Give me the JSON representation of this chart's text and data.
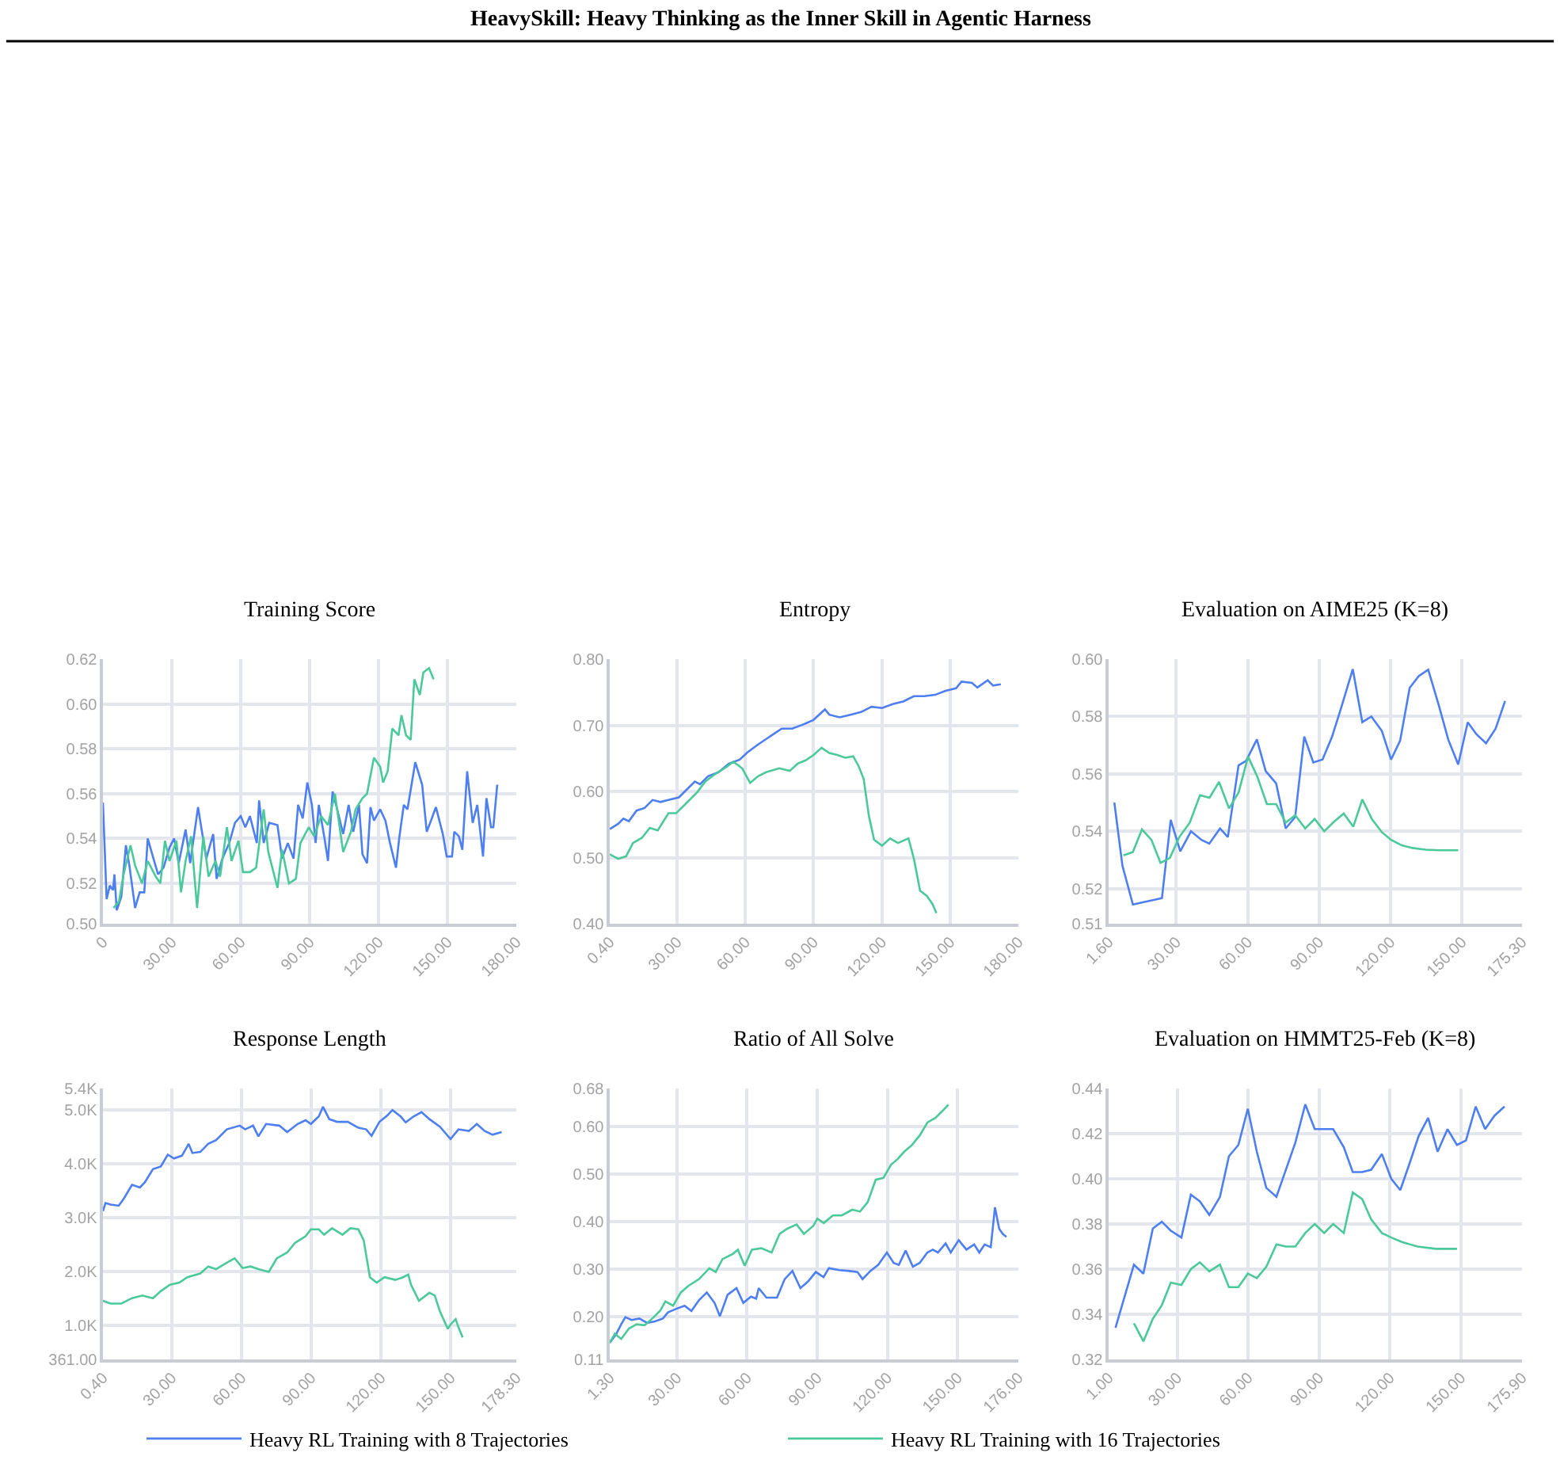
{
  "chart_data": [
    {
      "type": "line",
      "title": "Training Score",
      "annotations": [
        "HeavySkill: Heavy Thinking as the Inner Skill in Agentic Harness"
      ],
      "legend": "bottom",
      "grid": true,
      "line_style": "solid",
      "xlim": [
        0,
        180
      ],
      "xticks": [
        0,
        {
          "value": 30,
          "label": "30.00"
        },
        {
          "value": 60,
          "label": "60.00"
        },
        {
          "value": 90,
          "label": "90.00"
        },
        {
          "value": 120,
          "label": "120.00"
        },
        {
          "value": 150,
          "label": "150.00"
        },
        {
          "value": 180,
          "label": "180.00"
        }
      ],
      "ylim": [
        0.502,
        0.62
      ],
      "yticks": [
        {
          "value": 0.502,
          "label": "0.50"
        },
        0.52,
        0.54,
        0.56,
        0.58,
        {
          "value": 0.6,
          "label": "0.60"
        },
        0.62
      ],
      "series": [
        {
          "name": "Heavy RL Training with 8 Trajectories",
          "color": "#4d7ff0",
          "x": [
            0,
            1.6,
            3,
            4.4,
            5,
            6,
            8,
            10,
            11.5,
            14,
            16,
            18,
            19.5,
            22,
            24,
            26.4,
            29,
            31,
            33,
            36,
            38,
            41.4,
            45,
            48,
            49.5,
            52,
            55,
            57.5,
            60,
            62,
            64,
            67,
            68,
            70,
            72.4,
            76,
            78,
            80.5,
            83,
            85,
            87,
            89,
            91,
            92.6,
            94,
            96.5,
            98,
            100,
            102,
            104.6,
            107,
            109,
            111.5,
            113,
            115,
            116.5,
            118,
            120.7,
            123,
            125,
            127.6,
            129,
            131,
            132.6,
            136,
            139,
            141,
            142.5,
            145,
            148,
            149.7,
            152,
            153,
            155,
            156.5,
            158.6,
            161,
            163,
            165.5,
            167,
            169,
            170,
            171.7
          ],
          "values": [
            0.556,
            0.513,
            0.519,
            0.517,
            0.524,
            0.508,
            0.514,
            0.537,
            0.528,
            0.509,
            0.516,
            0.516,
            0.54,
            0.531,
            0.524,
            0.527,
            0.536,
            0.54,
            0.529,
            0.544,
            0.529,
            0.554,
            0.531,
            0.542,
            0.522,
            0.531,
            0.538,
            0.547,
            0.55,
            0.545,
            0.55,
            0.538,
            0.557,
            0.538,
            0.547,
            0.546,
            0.531,
            0.538,
            0.531,
            0.555,
            0.549,
            0.565,
            0.555,
            0.538,
            0.555,
            0.54,
            0.53,
            0.561,
            0.553,
            0.542,
            0.555,
            0.543,
            0.555,
            0.533,
            0.529,
            0.554,
            0.548,
            0.553,
            0.548,
            0.538,
            0.527,
            0.54,
            0.555,
            0.553,
            0.574,
            0.564,
            0.543,
            0.547,
            0.554,
            0.542,
            0.532,
            0.532,
            0.543,
            0.541,
            0.535,
            0.57,
            0.547,
            0.555,
            0.532,
            0.558,
            0.545,
            0.545,
            0.564
          ]
        },
        {
          "name": "Heavy RL Training with 16 Trajectories",
          "color": "#4cc99a",
          "x": [
            4.6,
            7,
            9,
            12,
            14,
            17,
            19.5,
            23,
            25,
            27,
            29,
            32,
            34,
            36,
            38.4,
            41,
            43.7,
            46,
            49,
            51,
            54,
            56,
            59,
            61,
            64,
            66.7,
            70,
            72,
            76,
            78,
            81,
            84,
            86,
            89.6,
            92,
            95,
            98,
            101,
            104.6,
            108,
            110,
            113,
            115,
            118,
            120.7,
            122,
            124,
            126,
            128.7,
            130,
            132,
            134,
            135.6,
            138,
            139.5,
            142,
            144
          ],
          "values": [
            0.509,
            0.512,
            0.524,
            0.537,
            0.528,
            0.52,
            0.53,
            0.523,
            0.52,
            0.539,
            0.53,
            0.539,
            0.516,
            0.53,
            0.541,
            0.509,
            0.541,
            0.523,
            0.53,
            0.523,
            0.545,
            0.53,
            0.539,
            0.525,
            0.525,
            0.527,
            0.553,
            0.534,
            0.518,
            0.535,
            0.52,
            0.522,
            0.538,
            0.545,
            0.541,
            0.55,
            0.546,
            0.56,
            0.534,
            0.543,
            0.553,
            0.558,
            0.56,
            0.576,
            0.572,
            0.565,
            0.57,
            0.589,
            0.586,
            0.595,
            0.586,
            0.584,
            0.611,
            0.604,
            0.614,
            0.616,
            0.611
          ]
        }
      ]
    },
    {
      "type": "line",
      "title": "Entropy",
      "grid": true,
      "line_style": "solid",
      "xlim": [
        0.4,
        180
      ],
      "xticks": [
        {
          "value": 0.4,
          "label": "0.40"
        },
        {
          "value": 30,
          "label": "30.00"
        },
        {
          "value": 60,
          "label": "60.00"
        },
        {
          "value": 90,
          "label": "90.00"
        },
        {
          "value": 120,
          "label": "120.00"
        },
        {
          "value": 150,
          "label": "150.00"
        },
        {
          "value": 180,
          "label": "180.00"
        }
      ],
      "ylim": [
        0.4,
        0.8
      ],
      "yticks": [
        {
          "value": 0.4,
          "label": "0.40"
        },
        {
          "value": 0.5,
          "label": "0.50"
        },
        {
          "value": 0.6,
          "label": "0.60"
        },
        {
          "value": 0.7,
          "label": "0.70"
        },
        {
          "value": 0.8,
          "label": "0.80"
        }
      ],
      "series": [
        {
          "color": "#4d7ff0",
          "x": [
            0.4,
            4.1,
            6.4,
            8.8,
            12.2,
            15.7,
            19.2,
            22.7,
            26.2,
            30.8,
            34.3,
            37.8,
            40.1,
            43.6,
            48.2,
            52.8,
            57.5,
            60.9,
            65.6,
            69.1,
            72.5,
            76,
            80.6,
            85.3,
            89.9,
            95,
            96.9,
            101.5,
            106.2,
            110.8,
            115.5,
            120.1,
            124.8,
            129.4,
            134.1,
            138.7,
            143.4,
            148,
            152.6,
            155,
            159.6,
            162,
            166.5,
            168.9,
            172.3
          ],
          "values": [
            0.543,
            0.551,
            0.559,
            0.555,
            0.571,
            0.575,
            0.587,
            0.584,
            0.587,
            0.591,
            0.603,
            0.615,
            0.611,
            0.623,
            0.629,
            0.642,
            0.648,
            0.659,
            0.671,
            0.679,
            0.687,
            0.695,
            0.695,
            0.701,
            0.708,
            0.724,
            0.716,
            0.712,
            0.716,
            0.72,
            0.728,
            0.726,
            0.732,
            0.736,
            0.744,
            0.744,
            0.746,
            0.752,
            0.756,
            0.766,
            0.764,
            0.757,
            0.768,
            0.76,
            0.762
          ]
        },
        {
          "color": "#4cc99a",
          "x": [
            0.4,
            4.1,
            7.6,
            10.6,
            14.6,
            18,
            21.5,
            26.2,
            29.6,
            34.3,
            38.9,
            42.4,
            47,
            51.7,
            54.7,
            58.6,
            62.1,
            65.6,
            69.1,
            74.9,
            79.5,
            83,
            86.5,
            90,
            93.5,
            96.9,
            100.4,
            103.9,
            107.4,
            109.7,
            112,
            114.3,
            116.6,
            120.1,
            123.6,
            127.1,
            131.7,
            134.1,
            136.8,
            139.8,
            142.2,
            144
          ],
          "values": [
            0.505,
            0.498,
            0.502,
            0.522,
            0.53,
            0.545,
            0.541,
            0.567,
            0.567,
            0.583,
            0.599,
            0.615,
            0.627,
            0.637,
            0.645,
            0.635,
            0.613,
            0.623,
            0.629,
            0.635,
            0.631,
            0.642,
            0.647,
            0.655,
            0.666,
            0.658,
            0.655,
            0.651,
            0.653,
            0.639,
            0.619,
            0.563,
            0.527,
            0.518,
            0.529,
            0.522,
            0.529,
            0.498,
            0.45,
            0.442,
            0.43,
            0.416
          ]
        }
      ]
    },
    {
      "type": "line",
      "title": "Evaluation on AIME25 (K=8)",
      "grid": true,
      "line_style": "solid",
      "xlim": [
        1.6,
        175.3
      ],
      "xticks": [
        {
          "value": 1.6,
          "label": "1.60"
        },
        {
          "value": 30,
          "label": "30.00"
        },
        {
          "value": 60,
          "label": "60.00"
        },
        {
          "value": 90,
          "label": "90.00"
        },
        {
          "value": 120,
          "label": "120.00"
        },
        {
          "value": 150,
          "label": "150.00"
        },
        {
          "value": 175.3,
          "label": "175.30"
        }
      ],
      "ylim": [
        0.5078,
        0.6
      ],
      "yticks": [
        {
          "value": 0.5078,
          "label": "0.51"
        },
        0.52,
        0.54,
        0.56,
        0.58,
        {
          "value": 0.6,
          "label": "0.60"
        }
      ],
      "series": [
        {
          "color": "#4d7ff0",
          "x": [
            4,
            7.4,
            11.8,
            24,
            27.7,
            31.7,
            36.2,
            40.6,
            43.9,
            48.4,
            51.7,
            56.2,
            59.4,
            63.9,
            67.6,
            72,
            76,
            80,
            83.8,
            87.6,
            91.5,
            95.5,
            99.3,
            104.2,
            108.2,
            112,
            116.4,
            120.3,
            124.1,
            128.1,
            131.9,
            135.9,
            140.3,
            144.3,
            148.5,
            152.5,
            156.2,
            160.2,
            164.2,
            168.2
          ],
          "values": [
            0.55,
            0.528,
            0.5145,
            0.5167,
            0.544,
            0.533,
            0.54,
            0.537,
            0.5357,
            0.541,
            0.538,
            0.563,
            0.5646,
            0.572,
            0.561,
            0.5567,
            0.541,
            0.545,
            0.573,
            0.564,
            0.565,
            0.573,
            0.583,
            0.5965,
            0.578,
            0.58,
            0.575,
            0.565,
            0.5716,
            0.59,
            0.5941,
            0.5963,
            0.584,
            0.572,
            0.5633,
            0.578,
            0.5738,
            0.5707,
            0.5757,
            0.5854
          ]
        },
        {
          "color": "#4cc99a",
          "x": [
            7.8,
            11.8,
            15.6,
            19.6,
            23.4,
            27.3,
            31.3,
            35.7,
            40,
            44,
            48,
            52.2,
            56.2,
            60.2,
            64.1,
            68.1,
            72,
            76,
            80,
            84.2,
            88.2,
            92.2,
            96.4,
            100.4,
            104.4,
            108.2,
            112.2,
            116.4,
            120.3,
            124.8,
            129.2,
            134.7,
            140.3,
            148.5
          ],
          "values": [
            0.5316,
            0.5328,
            0.5407,
            0.537,
            0.529,
            0.5307,
            0.538,
            0.543,
            0.5526,
            0.5517,
            0.5572,
            0.548,
            0.5535,
            0.566,
            0.559,
            0.5495,
            0.5495,
            0.543,
            0.5456,
            0.541,
            0.5443,
            0.54,
            0.5434,
            0.5462,
            0.5416,
            0.5511,
            0.5443,
            0.5397,
            0.537,
            0.5351,
            0.5342,
            0.5336,
            0.5334,
            0.5334
          ]
        }
      ]
    },
    {
      "type": "line",
      "title": "Response Length",
      "grid": true,
      "line_style": "solid",
      "xlim": [
        0.4,
        178.3
      ],
      "xticks": [
        {
          "value": 0.4,
          "label": "0.40"
        },
        {
          "value": 30,
          "label": "30.00"
        },
        {
          "value": 60,
          "label": "60.00"
        },
        {
          "value": 90,
          "label": "90.00"
        },
        {
          "value": 120,
          "label": "120.00"
        },
        {
          "value": 150,
          "label": "150.00"
        },
        {
          "value": 178.3,
          "label": "178.30"
        }
      ],
      "ylim": [
        361,
        5400
      ],
      "yticks": [
        {
          "value": 361,
          "label": "361.00"
        },
        {
          "value": 1000,
          "label": "1.0K"
        },
        {
          "value": 2000,
          "label": "2.0K"
        },
        {
          "value": 3000,
          "label": "3.0K"
        },
        {
          "value": 4000,
          "label": "4.0K"
        },
        {
          "value": 5000,
          "label": "5.0K"
        },
        {
          "value": 5400,
          "label": "5.4K"
        }
      ],
      "series": [
        {
          "color": "#4d7ff0",
          "x": [
            0.4,
            1.5,
            3.7,
            7.2,
            9.5,
            12.9,
            16.3,
            18.5,
            21.9,
            25.3,
            28.3,
            31,
            34.4,
            37.3,
            38.9,
            42.3,
            45.7,
            49.1,
            53.7,
            59.3,
            61.6,
            65,
            67.3,
            70.6,
            76.3,
            79.7,
            84.2,
            87.6,
            89.9,
            93.3,
            95.1,
            97.8,
            101.2,
            105.8,
            110.3,
            113.7,
            116,
            119.4,
            122.8,
            125,
            128.5,
            130.7,
            134.1,
            137.5,
            140.9,
            145.4,
            150,
            153.4,
            157.9,
            161.3,
            164.7,
            168.1,
            172
          ],
          "values": [
            3120,
            3270,
            3240,
            3220,
            3360,
            3610,
            3560,
            3660,
            3900,
            3950,
            4170,
            4100,
            4150,
            4370,
            4200,
            4220,
            4370,
            4440,
            4640,
            4710,
            4640,
            4710,
            4510,
            4740,
            4710,
            4590,
            4740,
            4810,
            4740,
            4880,
            5060,
            4830,
            4780,
            4780,
            4670,
            4640,
            4520,
            4780,
            4900,
            5000,
            4880,
            4770,
            4880,
            4960,
            4830,
            4690,
            4460,
            4640,
            4610,
            4740,
            4610,
            4540,
            4590
          ]
        },
        {
          "color": "#4cc99a",
          "x": [
            0.4,
            3.7,
            8.3,
            12.9,
            17.4,
            21.9,
            25.3,
            29.2,
            33.3,
            36.7,
            42.3,
            45.7,
            49.1,
            53.7,
            57.1,
            60.5,
            63.9,
            67.3,
            71.8,
            75.2,
            79.7,
            83.1,
            87.6,
            89.9,
            93.3,
            95.6,
            99,
            103.5,
            106.9,
            110.3,
            112.6,
            115.3,
            118.2,
            121.6,
            126.2,
            129.6,
            131.8,
            133,
            136.4,
            140.9,
            143.2,
            145.4,
            148.8,
            150,
            152.2,
            153.4,
            155.2
          ],
          "values": [
            1450,
            1400,
            1400,
            1500,
            1550,
            1500,
            1630,
            1750,
            1790,
            1890,
            1960,
            2090,
            2040,
            2160,
            2240,
            2060,
            2090,
            2040,
            1990,
            2240,
            2350,
            2530,
            2650,
            2780,
            2780,
            2680,
            2800,
            2680,
            2800,
            2780,
            2580,
            1890,
            1790,
            1890,
            1840,
            1890,
            1940,
            1750,
            1450,
            1600,
            1550,
            1260,
            930,
            1010,
            1110,
            960,
            770
          ]
        }
      ]
    },
    {
      "type": "line",
      "title": "Ratio of All Solve",
      "grid": true,
      "line_style": "solid",
      "xlim": [
        1.3,
        176
      ],
      "xticks": [
        {
          "value": 1.3,
          "label": "1.30"
        },
        {
          "value": 30,
          "label": "30.00"
        },
        {
          "value": 60,
          "label": "60.00"
        },
        {
          "value": 90,
          "label": "90.00"
        },
        {
          "value": 120,
          "label": "120.00"
        },
        {
          "value": 150,
          "label": "150.00"
        },
        {
          "value": 176,
          "label": "176.00"
        }
      ],
      "ylim": [
        0.11,
        0.68
      ],
      "yticks": [
        0.11,
        {
          "value": 0.2,
          "label": "0.20"
        },
        {
          "value": 0.3,
          "label": "0.30"
        },
        {
          "value": 0.4,
          "label": "0.40"
        },
        {
          "value": 0.5,
          "label": "0.50"
        },
        {
          "value": 0.6,
          "label": "0.60"
        },
        0.68
      ],
      "series": [
        {
          "color": "#4d7ff0",
          "x": [
            1.3,
            3.9,
            6.2,
            8,
            10.6,
            14,
            17.3,
            20.6,
            24,
            26.2,
            29.5,
            33.3,
            36.2,
            39.5,
            42.8,
            46.1,
            48.4,
            51.7,
            55.5,
            58.4,
            61.7,
            63.9,
            65,
            68.3,
            72.8,
            76.1,
            79.4,
            82.8,
            86.1,
            89.4,
            92.7,
            95,
            99.4,
            103.9,
            107.2,
            109.4,
            112.7,
            116.1,
            119.8,
            122.7,
            124.9,
            127.8,
            130.9,
            133.8,
            137.1,
            139.4,
            141.6,
            144.9,
            147.1,
            150.5,
            153.8,
            157.1,
            159.3,
            161.6,
            164.2,
            166,
            167.8,
            169.3,
            170.9
          ],
          "values": [
            0.145,
            0.162,
            0.184,
            0.199,
            0.193,
            0.196,
            0.187,
            0.19,
            0.196,
            0.209,
            0.216,
            0.223,
            0.212,
            0.235,
            0.251,
            0.229,
            0.201,
            0.246,
            0.26,
            0.229,
            0.242,
            0.238,
            0.26,
            0.24,
            0.24,
            0.279,
            0.296,
            0.26,
            0.274,
            0.294,
            0.283,
            0.302,
            0.298,
            0.296,
            0.294,
            0.279,
            0.296,
            0.309,
            0.335,
            0.313,
            0.309,
            0.339,
            0.305,
            0.313,
            0.335,
            0.341,
            0.335,
            0.354,
            0.335,
            0.361,
            0.341,
            0.352,
            0.335,
            0.352,
            0.346,
            0.43,
            0.385,
            0.374,
            0.368
          ]
        },
        {
          "color": "#4cc99a",
          "x": [
            1.3,
            3.5,
            6.2,
            9.5,
            12.8,
            16.2,
            19.5,
            22.8,
            25.1,
            28.4,
            31.7,
            35,
            39.5,
            43.9,
            46.6,
            49.5,
            53.9,
            56.1,
            59,
            62.1,
            66.1,
            70.5,
            73.9,
            77.2,
            81.2,
            84.3,
            88.3,
            90.1,
            92.8,
            96.7,
            100.5,
            105,
            108.3,
            111.6,
            115,
            118.3,
            121.6,
            124.3,
            127.2,
            130.5,
            133.8,
            137.2,
            140.5,
            143.8,
            146.1
          ],
          "values": [
            0.145,
            0.164,
            0.153,
            0.175,
            0.184,
            0.182,
            0.196,
            0.212,
            0.232,
            0.223,
            0.251,
            0.265,
            0.279,
            0.302,
            0.294,
            0.321,
            0.332,
            0.341,
            0.307,
            0.341,
            0.344,
            0.335,
            0.374,
            0.385,
            0.394,
            0.374,
            0.391,
            0.406,
            0.397,
            0.413,
            0.413,
            0.425,
            0.421,
            0.441,
            0.488,
            0.492,
            0.52,
            0.531,
            0.547,
            0.561,
            0.581,
            0.609,
            0.618,
            0.634,
            0.646
          ]
        }
      ]
    },
    {
      "type": "line",
      "title": "Evaluation on HMMT25-Feb (K=8)",
      "grid": true,
      "line_style": "solid",
      "xlim": [
        1,
        175.9
      ],
      "xticks": [
        {
          "value": 1,
          "label": "1.00"
        },
        {
          "value": 30,
          "label": "30.00"
        },
        {
          "value": 60,
          "label": "60.00"
        },
        {
          "value": 90,
          "label": "90.00"
        },
        {
          "value": 120,
          "label": "120.00"
        },
        {
          "value": 150,
          "label": "150.00"
        },
        {
          "value": 175.9,
          "label": "175.90"
        }
      ],
      "ylim": [
        0.32,
        0.44
      ],
      "yticks": [
        0.32,
        0.34,
        0.36,
        0.38,
        {
          "value": 0.4,
          "label": "0.40"
        },
        0.42,
        0.44
      ],
      "series": [
        {
          "color": "#4d7ff0",
          "x": [
            3.9,
            11.7,
            15.7,
            19.7,
            23.5,
            27.3,
            31.8,
            35.8,
            39.6,
            43.6,
            48.1,
            51.9,
            55.9,
            59.9,
            63.7,
            67.7,
            72,
            76,
            80,
            84.2,
            88.2,
            92.2,
            96,
            100.5,
            104.3,
            108.3,
            112.1,
            116.6,
            120.6,
            124.4,
            128.4,
            132.2,
            136.2,
            140.2,
            144.4,
            148.4,
            152.2,
            156.3,
            160.3,
            164.3,
            168.5
          ],
          "values": [
            0.334,
            0.362,
            0.358,
            0.378,
            0.381,
            0.377,
            0.374,
            0.393,
            0.39,
            0.384,
            0.392,
            0.41,
            0.415,
            0.431,
            0.412,
            0.396,
            0.392,
            0.404,
            0.416,
            0.433,
            0.422,
            0.422,
            0.422,
            0.414,
            0.403,
            0.403,
            0.404,
            0.411,
            0.4,
            0.395,
            0.407,
            0.419,
            0.427,
            0.412,
            0.422,
            0.415,
            0.417,
            0.432,
            0.422,
            0.428,
            0.432
          ]
        },
        {
          "color": "#4cc99a",
          "x": [
            11.7,
            15.7,
            19.7,
            23.5,
            27.3,
            31.8,
            35.8,
            39.6,
            43.6,
            48.1,
            51.9,
            55.9,
            59.9,
            63.7,
            67.7,
            72,
            76,
            80,
            84.2,
            88.2,
            92.2,
            96,
            100.5,
            104.3,
            108.3,
            112.1,
            116.6,
            120.6,
            125.1,
            131.7,
            139.5,
            148.4
          ],
          "values": [
            0.336,
            0.328,
            0.338,
            0.344,
            0.354,
            0.353,
            0.36,
            0.363,
            0.359,
            0.362,
            0.352,
            0.352,
            0.358,
            0.356,
            0.361,
            0.371,
            0.37,
            0.37,
            0.376,
            0.38,
            0.376,
            0.38,
            0.376,
            0.394,
            0.391,
            0.382,
            0.376,
            0.374,
            0.372,
            0.37,
            0.369,
            0.369
          ]
        }
      ]
    }
  ]
}
